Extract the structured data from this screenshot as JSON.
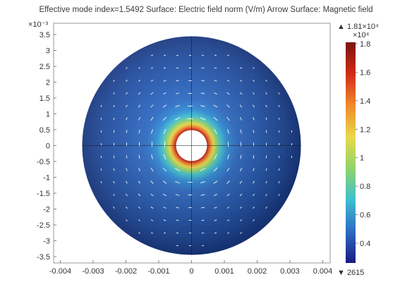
{
  "title": "Effective mode index=1.5492   Surface: Electric field norm (V/m)   Arrow Surface: Magnetic field",
  "chart_data": {
    "type": "heatmap",
    "title": "Effective mode index=1.5492   Surface: Electric field norm (V/m)   Arrow Surface: Magnetic field",
    "surface": "Electric field norm (V/m)",
    "arrow_surface": "Magnetic field",
    "effective_mode_index": 1.5492,
    "xlim": [
      -0.0043,
      0.0043
    ],
    "ylim": [
      -0.0037,
      0.0037
    ],
    "x_ticks": [
      "-0.004",
      "-0.003",
      "-0.002",
      "-0.001",
      "0",
      "0.001",
      "0.002",
      "0.003",
      "0.004"
    ],
    "x_tick_values": [
      -0.004,
      -0.003,
      -0.002,
      -0.001,
      0,
      0.001,
      0.002,
      0.003,
      0.004
    ],
    "y_ticks": [
      "3.5",
      "3",
      "2.5",
      "2",
      "1.5",
      "1",
      "0.5",
      "0",
      "-0.5",
      "-1",
      "-1.5",
      "-2",
      "-2.5",
      "-3",
      "-3.5"
    ],
    "y_tick_values": [
      3.5,
      3,
      2.5,
      2,
      1.5,
      1,
      0.5,
      0,
      -0.5,
      -1,
      -1.5,
      -2,
      -2.5,
      -3,
      -3.5
    ],
    "y_multiplier": "×10⁻³",
    "geometry": {
      "outer_radius": 0.0034,
      "inner_radius": 0.0005
    },
    "colorbar": {
      "max_label": "▲ 1.81×10⁴",
      "min_label": "▼ 2615",
      "multiplier": "×10⁴",
      "ticks": [
        "1.8",
        "1.6",
        "1.4",
        "1.2",
        "1",
        "0.8",
        "0.6",
        "0.4"
      ],
      "tick_values": [
        1.8,
        1.6,
        1.4,
        1.2,
        1.0,
        0.8,
        0.6,
        0.4
      ],
      "min": 0.2615,
      "max": 1.81,
      "colormap": "rainbow",
      "colors": [
        "#1a1a80",
        "#2e6bc4",
        "#3fbfcf",
        "#8fd46a",
        "#e8d84a",
        "#f08a2a",
        "#d02a18",
        "#7a1410"
      ]
    }
  }
}
